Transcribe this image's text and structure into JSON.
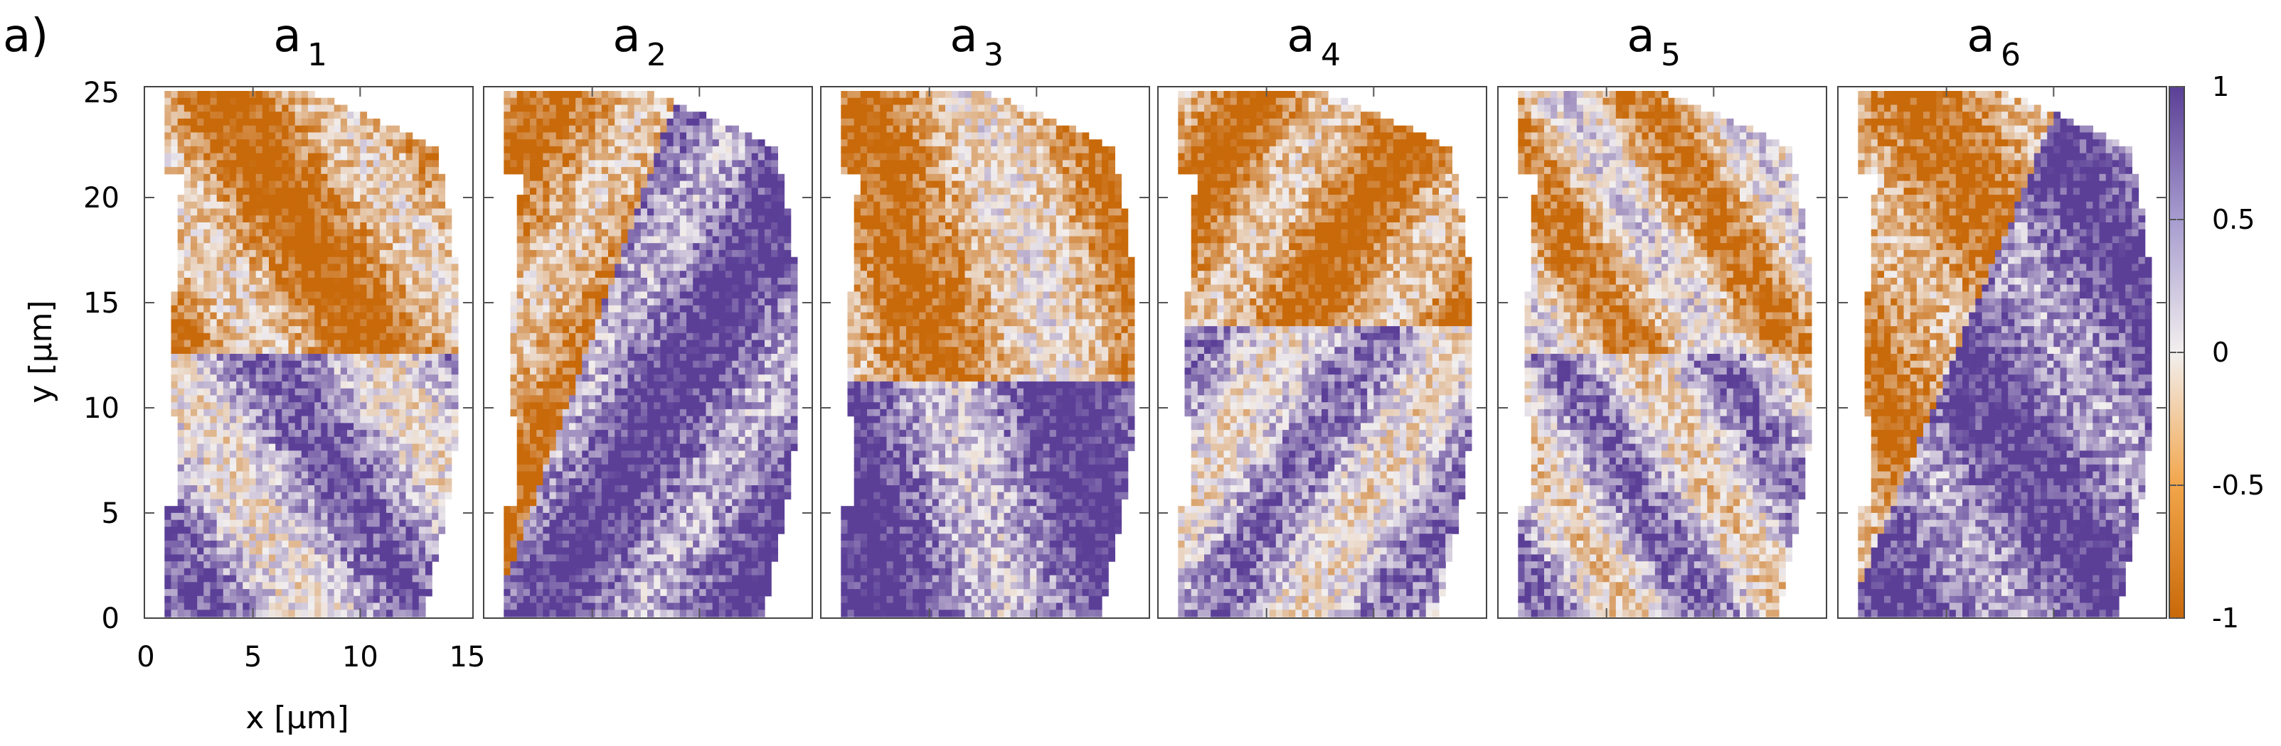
{
  "figure_label": "a)",
  "chart_data": {
    "type": "heatmap",
    "panels": [
      {
        "title_base": "a",
        "title_sub": "1"
      },
      {
        "title_base": "a",
        "title_sub": "2"
      },
      {
        "title_base": "a",
        "title_sub": "3"
      },
      {
        "title_base": "a",
        "title_sub": "4"
      },
      {
        "title_base": "a",
        "title_sub": "5"
      },
      {
        "title_base": "a",
        "title_sub": "6"
      }
    ],
    "xlabel": "x [µm]",
    "ylabel": "y [µm]",
    "x_ticks": [
      0,
      5,
      10,
      15
    ],
    "y_ticks": [
      0,
      5,
      10,
      15,
      20,
      25
    ],
    "xlim": [
      0,
      15
    ],
    "ylim": [
      0,
      25
    ],
    "colorbar": {
      "range": [
        -1,
        1
      ],
      "ticks": [
        1,
        0.5,
        0,
        -0.5,
        -1
      ],
      "tick_labels": [
        "1",
        "0.5",
        "0",
        "-0.5",
        "-1"
      ],
      "colors": {
        "low": "#c8690a",
        "mid": "#f2efef",
        "high": "#5b3f97"
      }
    }
  }
}
